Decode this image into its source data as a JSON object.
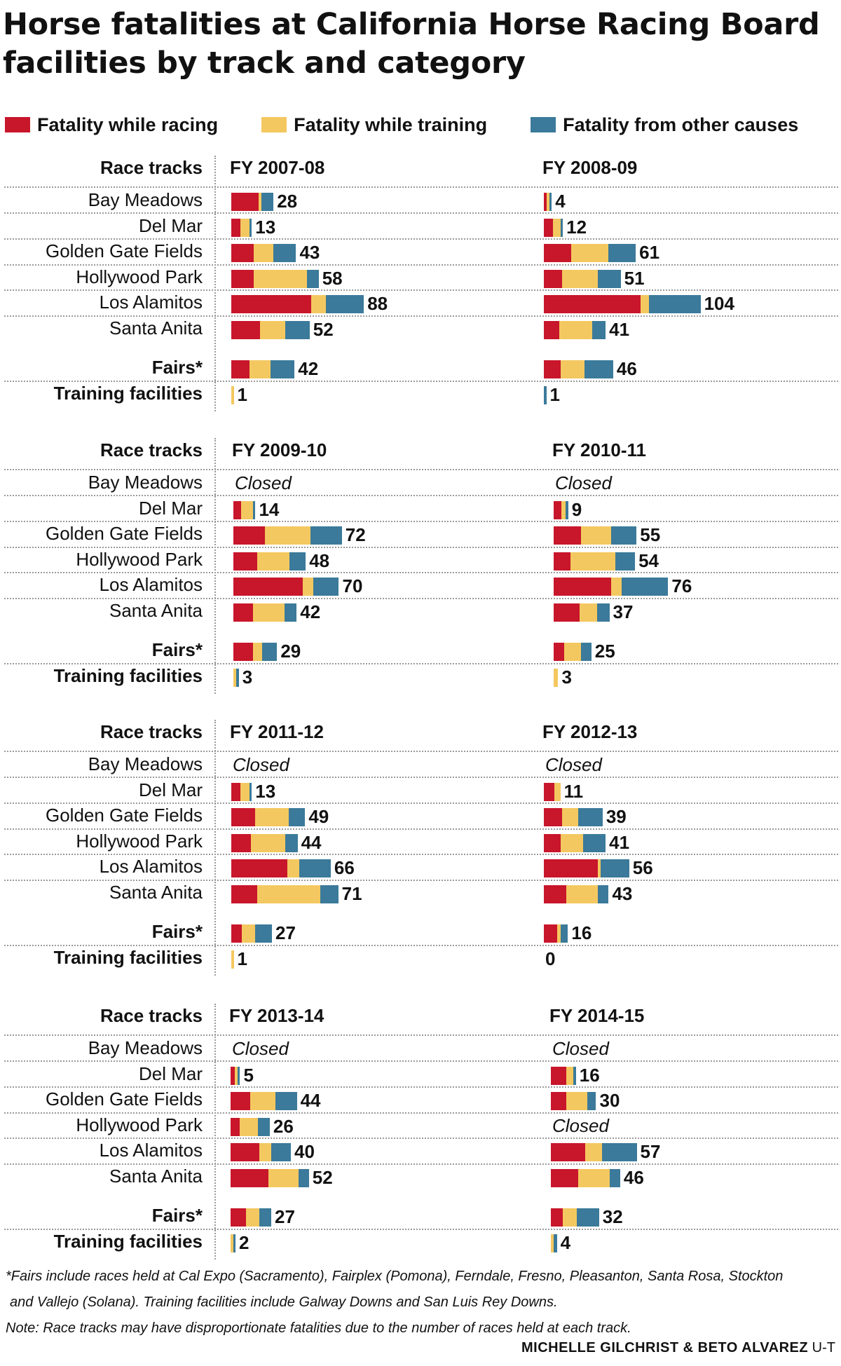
{
  "title": "Horse fatalities at California Horse Racing Board facilities by track and category",
  "legend": [
    {
      "label": "Fatality while racing",
      "color": "#c8162b"
    },
    {
      "label": "Fatality while training",
      "color": "#f4c860"
    },
    {
      "label": "Fatality from other causes",
      "color": "#3b7a9a"
    }
  ],
  "section_label": "Race tracks",
  "footnote": [
    "*Fairs include races held at Cal Expo (Sacramento), Fairplex (Pomona), Ferndale, Fresno, Pleasanton, Santa Rosa, Stockton",
    "and Vallejo (Solana). Training facilities include Galway Downs and San Luis Rey Downs.",
    "Note: Race tracks may have disproportionate fatalities due to the number of races held at each track."
  ],
  "credit": {
    "names": "MICHELLE GILCHRIST & BETO ALVAREZ",
    "org": "U-T"
  },
  "chart_data": {
    "type": "bar",
    "orientation": "horizontal",
    "stacked": true,
    "categories": [
      "Bay Meadows",
      "Del Mar",
      "Golden Gate Fields",
      "Hollywood Park",
      "Los Alamitos",
      "Santa Anita",
      "Fairs*",
      "Training facilities"
    ],
    "series_names": [
      "Fatality while racing",
      "Fatality while training",
      "Fatality from other causes"
    ],
    "closed_label": "Closed",
    "panels": [
      {
        "year": "FY 2007-08",
        "rows": [
          {
            "total": 28,
            "racing": 18,
            "training": 2,
            "other": 8
          },
          {
            "total": 13,
            "racing": 6,
            "training": 6,
            "other": 1
          },
          {
            "total": 43,
            "racing": 15,
            "training": 13,
            "other": 15
          },
          {
            "total": 58,
            "racing": 15,
            "training": 35,
            "other": 8
          },
          {
            "total": 88,
            "racing": 53,
            "training": 10,
            "other": 25
          },
          {
            "total": 52,
            "racing": 19,
            "training": 17,
            "other": 16
          },
          {
            "total": 42,
            "racing": 12,
            "training": 14,
            "other": 16
          },
          {
            "total": 1,
            "racing": 0,
            "training": 1,
            "other": 0
          }
        ]
      },
      {
        "year": "FY 2008-09",
        "rows": [
          {
            "total": 4,
            "racing": 2,
            "training": 1,
            "other": 1
          },
          {
            "total": 12,
            "racing": 6,
            "training": 5,
            "other": 1
          },
          {
            "total": 61,
            "racing": 18,
            "training": 25,
            "other": 18
          },
          {
            "total": 51,
            "racing": 12,
            "training": 24,
            "other": 15
          },
          {
            "total": 104,
            "racing": 64,
            "training": 6,
            "other": 34
          },
          {
            "total": 41,
            "racing": 10,
            "training": 22,
            "other": 9
          },
          {
            "total": 46,
            "racing": 11,
            "training": 16,
            "other": 19
          },
          {
            "total": 1,
            "racing": 0,
            "training": 0,
            "other": 1
          }
        ]
      },
      {
        "year": "FY 2009-10",
        "rows": [
          {
            "closed": true
          },
          {
            "total": 14,
            "racing": 5,
            "training": 8,
            "other": 1
          },
          {
            "total": 72,
            "racing": 21,
            "training": 30,
            "other": 21
          },
          {
            "total": 48,
            "racing": 16,
            "training": 21,
            "other": 11
          },
          {
            "total": 70,
            "racing": 46,
            "training": 7,
            "other": 17
          },
          {
            "total": 42,
            "racing": 13,
            "training": 21,
            "other": 8
          },
          {
            "total": 29,
            "racing": 13,
            "training": 6,
            "other": 10
          },
          {
            "total": 3,
            "racing": 0,
            "training": 2,
            "other": 1
          }
        ]
      },
      {
        "year": "FY 2010-11",
        "rows": [
          {
            "closed": true
          },
          {
            "total": 9,
            "racing": 5,
            "training": 3,
            "other": 1
          },
          {
            "total": 55,
            "racing": 18,
            "training": 20,
            "other": 17
          },
          {
            "total": 54,
            "racing": 11,
            "training": 30,
            "other": 13
          },
          {
            "total": 76,
            "racing": 38,
            "training": 7,
            "other": 31
          },
          {
            "total": 37,
            "racing": 17,
            "training": 12,
            "other": 8
          },
          {
            "total": 25,
            "racing": 7,
            "training": 11,
            "other": 7
          },
          {
            "total": 3,
            "racing": 0,
            "training": 3,
            "other": 0
          }
        ]
      },
      {
        "year": "FY 2011-12",
        "rows": [
          {
            "closed": true
          },
          {
            "total": 13,
            "racing": 6,
            "training": 6,
            "other": 1
          },
          {
            "total": 49,
            "racing": 16,
            "training": 22,
            "other": 11
          },
          {
            "total": 44,
            "racing": 13,
            "training": 23,
            "other": 8
          },
          {
            "total": 66,
            "racing": 37,
            "training": 8,
            "other": 21
          },
          {
            "total": 71,
            "racing": 17,
            "training": 42,
            "other": 12
          },
          {
            "total": 27,
            "racing": 7,
            "training": 9,
            "other": 11
          },
          {
            "total": 1,
            "racing": 0,
            "training": 1,
            "other": 0
          }
        ]
      },
      {
        "year": "FY 2012-13",
        "rows": [
          {
            "closed": true
          },
          {
            "total": 11,
            "racing": 7,
            "training": 4,
            "other": 0
          },
          {
            "total": 39,
            "racing": 12,
            "training": 11,
            "other": 16
          },
          {
            "total": 41,
            "racing": 11,
            "training": 15,
            "other": 15
          },
          {
            "total": 56,
            "racing": 36,
            "training": 1,
            "other": 19
          },
          {
            "total": 43,
            "racing": 15,
            "training": 21,
            "other": 7
          },
          {
            "total": 16,
            "racing": 9,
            "training": 2,
            "other": 5
          },
          {
            "total": 0,
            "racing": 0,
            "training": 0,
            "other": 0
          }
        ]
      },
      {
        "year": "FY 2013-14",
        "rows": [
          {
            "closed": true
          },
          {
            "total": 5,
            "racing": 3,
            "training": 1,
            "other": 1
          },
          {
            "total": 44,
            "racing": 13,
            "training": 17,
            "other": 14
          },
          {
            "total": 26,
            "racing": 6,
            "training": 12,
            "other": 8
          },
          {
            "total": 40,
            "racing": 19,
            "training": 8,
            "other": 13
          },
          {
            "total": 52,
            "racing": 25,
            "training": 20,
            "other": 7
          },
          {
            "total": 27,
            "racing": 10,
            "training": 9,
            "other": 8
          },
          {
            "total": 2,
            "racing": 0,
            "training": 1,
            "other": 1
          }
        ]
      },
      {
        "year": "FY 2014-15",
        "rows": [
          {
            "closed": true
          },
          {
            "total": 16,
            "racing": 10,
            "training": 5,
            "other": 1
          },
          {
            "total": 30,
            "racing": 10,
            "training": 14,
            "other": 6
          },
          {
            "closed": true
          },
          {
            "total": 57,
            "racing": 23,
            "training": 11,
            "other": 23
          },
          {
            "total": 46,
            "racing": 18,
            "training": 21,
            "other": 7
          },
          {
            "total": 32,
            "racing": 8,
            "training": 9,
            "other": 15
          },
          {
            "total": 4,
            "racing": 0,
            "training": 2,
            "other": 2
          }
        ]
      }
    ]
  }
}
